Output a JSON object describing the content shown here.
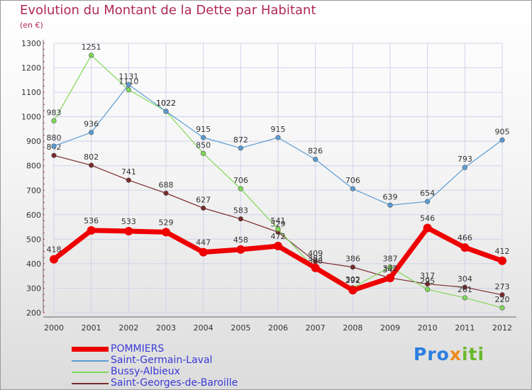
{
  "title": "Evolution du Montant de la Dette par Habitant",
  "unit_label": "(en €)",
  "logo": [
    "Pro",
    "x",
    "iti"
  ],
  "colors": {
    "title": "#b0285a",
    "legend_text": "#3a3ad8",
    "grid": "#cfd3e8",
    "axis": "#666666"
  },
  "chart_data": {
    "type": "line",
    "title": "Evolution du Montant de la Dette par Habitant",
    "ylabel": "(en €)",
    "xlabel": "",
    "ylim": [
      200,
      1300
    ],
    "yticks": [
      200,
      300,
      400,
      500,
      600,
      700,
      800,
      900,
      1000,
      1100,
      1200,
      1300
    ],
    "grid": true,
    "legend_position": "bottom-left",
    "categories": [
      "2000",
      "2001",
      "2002",
      "2003",
      "2004",
      "2005",
      "2006",
      "2007",
      "2008",
      "2009",
      "2010",
      "2011",
      "2012"
    ],
    "series": [
      {
        "name": "Saint-Georges-de-Baroille",
        "color": "#7a2a2a",
        "values": [
          842,
          802,
          741,
          688,
          627,
          583,
          529,
          409,
          386,
          342,
          317,
          304,
          273
        ],
        "labels": [
          "842",
          "802",
          "741",
          "688",
          "627",
          "583",
          "529",
          "409",
          "386",
          "342",
          "317",
          "304",
          "273"
        ]
      },
      {
        "name": "Bussy-Albieux",
        "color": "#7ed957",
        "values": [
          983,
          1251,
          1110,
          1022,
          850,
          706,
          541,
          378,
          302,
          387,
          295,
          261,
          220
        ],
        "labels": [
          "983",
          "1251",
          "1110",
          "1022",
          "850",
          "706",
          "541",
          "378",
          "302",
          "387",
          "295",
          "261",
          "220"
        ]
      },
      {
        "name": "Saint-Germain-Laval",
        "color": "#5b9bd5",
        "values": [
          880,
          936,
          1131,
          1022,
          915,
          872,
          915,
          826,
          706,
          639,
          654,
          793,
          905
        ],
        "labels": [
          "880",
          "936",
          "1131",
          "1022",
          "915",
          "872",
          "915",
          "826",
          "706",
          "639",
          "654",
          "793",
          "905"
        ]
      },
      {
        "name": "POMMIERS",
        "color": "#ee0000",
        "values": [
          418,
          536,
          533,
          529,
          447,
          458,
          472,
          383,
          292,
          342,
          546,
          466,
          412
        ],
        "labels": [
          "418",
          "536",
          "533",
          "529",
          "447",
          "458",
          "472",
          "383",
          "292",
          "342",
          "546",
          "466",
          "412"
        ]
      }
    ]
  },
  "legend": [
    {
      "label": "POMMIERS",
      "color": "#ee0000",
      "thick": true
    },
    {
      "label": "Saint-Germain-Laval",
      "color": "#5b9bd5",
      "thick": false
    },
    {
      "label": "Bussy-Albieux",
      "color": "#7ed957",
      "thick": false
    },
    {
      "label": "Saint-Georges-de-Baroille",
      "color": "#7a2a2a",
      "thick": false
    }
  ]
}
